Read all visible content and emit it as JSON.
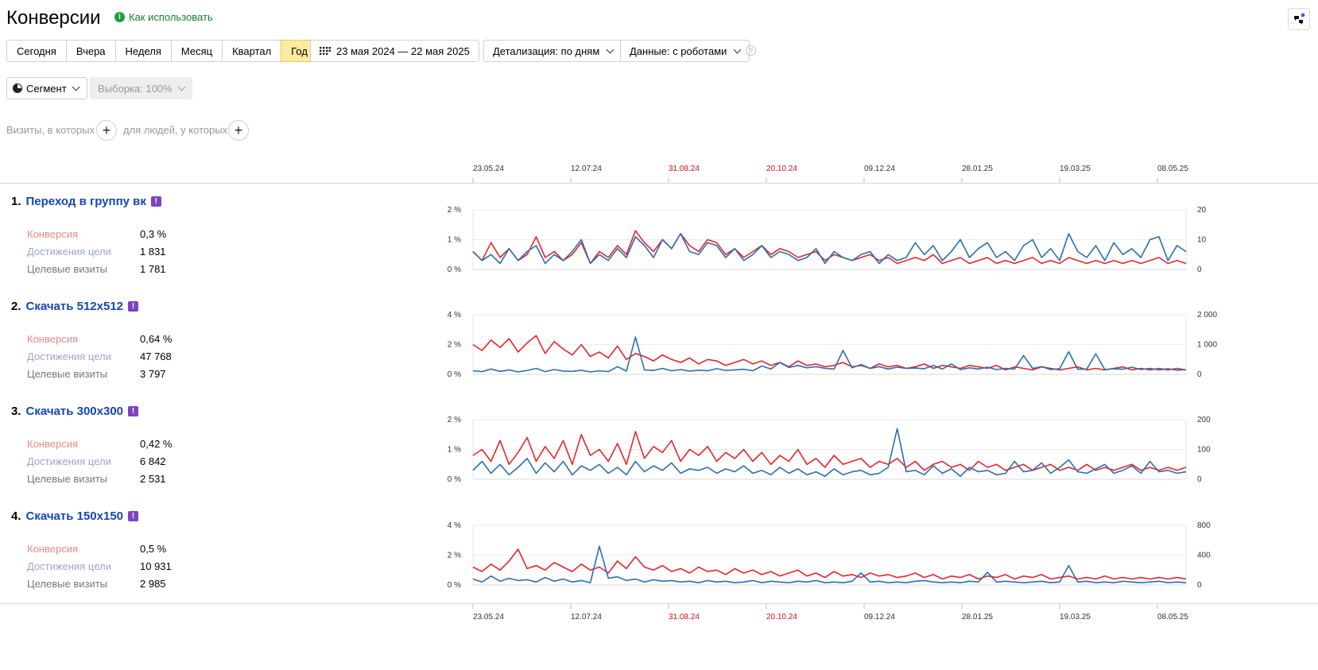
{
  "header": {
    "title": "Конверсии",
    "howto_label": "Как использовать",
    "corner_icon": "chat-bubbles-icon"
  },
  "toolbar": {
    "periods": [
      "Сегодня",
      "Вчера",
      "Неделя",
      "Месяц",
      "Квартал",
      "Год"
    ],
    "active_period": "Год",
    "date_range": "23 мая 2024 — 22 мая 2025",
    "detail_label": "Детализация: по дням",
    "data_label": "Данные: с роботами",
    "help_glyph": "?"
  },
  "segment": {
    "segment_label": "Сегмент",
    "sample_label": "Выборка: 100%",
    "visits_label": "Визиты, в которых",
    "people_label": "для людей, у которых",
    "plus_glyph": "+"
  },
  "timeline": {
    "ticks": [
      "23.05.24",
      "12.07.24",
      "31.08.24",
      "20.10.24",
      "09.12.24",
      "28.01.25",
      "19.03.25",
      "08.05.25"
    ],
    "red_ticks": [
      "31.08.24",
      "20.10.24"
    ]
  },
  "metric_labels": {
    "conversion": "Конверсия",
    "reaches": "Достижения цели",
    "visits": "Целевые визиты"
  },
  "colors": {
    "conversion_line": "#e8242b",
    "reaches_line": "#2a6fb0",
    "active_period_bg": "#ffeba0",
    "goal_link": "#1447b0",
    "badge": "#7b44c2",
    "weekend_tick": "#c0141c"
  },
  "goals": [
    {
      "num": "1.",
      "name": "Переход в группу вк",
      "badge": "!",
      "conversion": "0,3 %",
      "reaches": "1 831",
      "visits": "1 781"
    },
    {
      "num": "2.",
      "name": "Скачать 512x512",
      "badge": "!",
      "conversion": "0,64 %",
      "reaches": "47 768",
      "visits": "3 797"
    },
    {
      "num": "3.",
      "name": "Скачать 300x300",
      "badge": "!",
      "conversion": "0,42 %",
      "reaches": "6 842",
      "visits": "2 531"
    },
    {
      "num": "4.",
      "name": "Скачать 150x150",
      "badge": "!",
      "conversion": "0,5 %",
      "reaches": "10 931",
      "visits": "2 985"
    }
  ],
  "chart_data": [
    {
      "type": "line",
      "left_axis_ticks": [
        "2 %",
        "1 %",
        "0 %"
      ],
      "right_axis_ticks": [
        "20",
        "10",
        "0"
      ],
      "ylim_left": [
        0,
        2
      ],
      "ylim_right": [
        0,
        20
      ],
      "series": [
        {
          "name": "Конверсия",
          "axis": "left",
          "values": [
            0.6,
            0.3,
            0.9,
            0.4,
            0.7,
            0.3,
            0.5,
            1.1,
            0.4,
            0.6,
            0.3,
            0.5,
            0.9,
            0.2,
            0.6,
            0.4,
            0.8,
            0.5,
            1.3,
            0.9,
            0.6,
            1.0,
            0.7,
            1.2,
            0.8,
            0.6,
            1.0,
            0.9,
            0.5,
            0.7,
            0.4,
            0.6,
            0.8,
            0.5,
            0.7,
            0.6,
            0.4,
            0.5,
            0.6,
            0.3,
            0.5,
            0.4,
            0.3,
            0.4,
            0.5,
            0.3,
            0.4,
            0.2,
            0.3,
            0.4,
            0.3,
            0.5,
            0.2,
            0.3,
            0.4,
            0.2,
            0.3,
            0.4,
            0.2,
            0.3,
            0.2,
            0.3,
            0.4,
            0.2,
            0.3,
            0.2,
            0.4,
            0.3,
            0.2,
            0.3,
            0.2,
            0.3,
            0.2,
            0.3,
            0.2,
            0.3,
            0.4,
            0.2,
            0.3,
            0.2
          ]
        },
        {
          "name": "Достижения цели",
          "axis": "right",
          "values": [
            6,
            3,
            5,
            2,
            7,
            3,
            6,
            8,
            2,
            5,
            3,
            6,
            10,
            2,
            5,
            3,
            7,
            4,
            11,
            8,
            4,
            10,
            7,
            12,
            6,
            5,
            9,
            8,
            4,
            7,
            3,
            5,
            8,
            4,
            6,
            5,
            3,
            4,
            7,
            2,
            6,
            4,
            3,
            5,
            6,
            2,
            5,
            3,
            4,
            9,
            5,
            8,
            3,
            6,
            10,
            4,
            7,
            9,
            4,
            6,
            3,
            8,
            10,
            4,
            7,
            3,
            12,
            6,
            4,
            8,
            3,
            9,
            5,
            7,
            4,
            10,
            11,
            3,
            8,
            6
          ]
        }
      ]
    },
    {
      "type": "line",
      "left_axis_ticks": [
        "4 %",
        "2 %",
        "0 %"
      ],
      "right_axis_ticks": [
        "2 000",
        "1 000",
        "0"
      ],
      "ylim_left": [
        0,
        4
      ],
      "ylim_right": [
        0,
        2000
      ],
      "series": [
        {
          "name": "Конверсия",
          "axis": "left",
          "values": [
            2.0,
            1.6,
            2.3,
            1.8,
            2.4,
            1.5,
            2.1,
            2.6,
            1.4,
            2.2,
            1.7,
            1.3,
            2.0,
            1.2,
            1.5,
            1.1,
            1.9,
            1.0,
            1.4,
            1.2,
            0.9,
            1.3,
            1.0,
            0.8,
            1.1,
            0.7,
            1.0,
            0.9,
            0.6,
            0.8,
            1.0,
            0.7,
            0.9,
            0.6,
            0.8,
            0.5,
            0.9,
            0.6,
            0.7,
            0.5,
            0.6,
            0.8,
            0.5,
            0.6,
            0.4,
            0.7,
            0.5,
            0.6,
            0.4,
            0.5,
            0.7,
            0.4,
            0.6,
            0.5,
            0.4,
            0.6,
            0.5,
            0.4,
            0.6,
            0.3,
            0.5,
            0.4,
            0.3,
            0.5,
            0.4,
            0.3,
            0.4,
            0.5,
            0.3,
            0.4,
            0.3,
            0.4,
            0.5,
            0.3,
            0.4,
            0.3,
            0.4,
            0.3,
            0.4,
            0.3
          ]
        },
        {
          "name": "Достижения цели",
          "axis": "right",
          "values": [
            120,
            90,
            180,
            100,
            150,
            80,
            130,
            200,
            90,
            160,
            110,
            100,
            140,
            80,
            120,
            90,
            260,
            110,
            1250,
            150,
            130,
            200,
            120,
            160,
            110,
            140,
            120,
            190,
            130,
            150,
            170,
            120,
            280,
            180,
            400,
            230,
            300,
            220,
            260,
            200,
            180,
            800,
            220,
            330,
            200,
            260,
            180,
            240,
            200,
            210,
            190,
            300,
            180,
            350,
            160,
            220,
            180,
            240,
            160,
            200,
            180,
            630,
            200,
            260,
            160,
            190,
            760,
            170,
            180,
            690,
            160,
            190,
            170,
            240,
            160,
            200,
            150,
            190,
            140,
            160
          ]
        }
      ]
    },
    {
      "type": "line",
      "left_axis_ticks": [
        "2 %",
        "1 %",
        "0 %"
      ],
      "right_axis_ticks": [
        "200",
        "100",
        "0"
      ],
      "ylim_left": [
        0,
        2
      ],
      "ylim_right": [
        0,
        200
      ],
      "series": [
        {
          "name": "Конверсия",
          "axis": "left",
          "values": [
            0.8,
            1.0,
            0.6,
            1.3,
            0.5,
            0.9,
            1.4,
            0.6,
            1.1,
            0.7,
            1.3,
            0.5,
            1.5,
            0.8,
            1.0,
            0.6,
            1.2,
            0.5,
            1.6,
            0.7,
            1.1,
            0.9,
            1.3,
            0.6,
            1.0,
            0.8,
            1.1,
            0.6,
            0.9,
            0.7,
            1.0,
            0.6,
            0.9,
            0.5,
            0.8,
            0.6,
            1.0,
            0.5,
            0.7,
            0.4,
            0.8,
            0.5,
            0.6,
            0.7,
            0.4,
            0.6,
            0.5,
            0.7,
            0.4,
            0.6,
            0.3,
            0.5,
            0.6,
            0.4,
            0.5,
            0.3,
            0.6,
            0.4,
            0.5,
            0.3,
            0.4,
            0.5,
            0.3,
            0.4,
            0.5,
            0.3,
            0.4,
            0.3,
            0.5,
            0.3,
            0.4,
            0.3,
            0.4,
            0.5,
            0.3,
            0.4,
            0.3,
            0.4,
            0.3,
            0.4
          ]
        },
        {
          "name": "Достижения цели",
          "axis": "right",
          "values": [
            30,
            60,
            20,
            50,
            15,
            40,
            70,
            20,
            55,
            25,
            60,
            15,
            45,
            30,
            50,
            20,
            40,
            15,
            60,
            25,
            45,
            30,
            55,
            20,
            35,
            30,
            40,
            20,
            35,
            25,
            45,
            20,
            30,
            15,
            40,
            20,
            35,
            15,
            25,
            10,
            35,
            15,
            25,
            30,
            15,
            20,
            40,
            170,
            25,
            30,
            15,
            45,
            20,
            35,
            10,
            40,
            25,
            30,
            15,
            20,
            60,
            25,
            30,
            55,
            20,
            40,
            65,
            25,
            20,
            35,
            50,
            20,
            30,
            45,
            20,
            60,
            25,
            30,
            20,
            25
          ]
        }
      ]
    },
    {
      "type": "line",
      "left_axis_ticks": [
        "4 %",
        "2 %",
        "0 %"
      ],
      "right_axis_ticks": [
        "800",
        "400",
        "0"
      ],
      "ylim_left": [
        0,
        4
      ],
      "ylim_right": [
        0,
        800
      ],
      "series": [
        {
          "name": "Конверсия",
          "axis": "left",
          "values": [
            1.2,
            0.9,
            1.4,
            1.0,
            1.6,
            2.4,
            1.1,
            1.3,
            1.0,
            1.5,
            1.2,
            0.9,
            1.4,
            1.0,
            1.2,
            0.8,
            1.6,
            1.1,
            1.9,
            1.2,
            1.0,
            1.3,
            0.9,
            1.1,
            0.8,
            1.2,
            0.9,
            1.0,
            0.7,
            1.1,
            0.8,
            1.0,
            0.7,
            0.9,
            0.6,
            0.8,
            1.0,
            0.6,
            0.8,
            0.5,
            0.9,
            0.6,
            0.7,
            0.5,
            0.8,
            0.6,
            0.7,
            0.5,
            0.6,
            0.8,
            0.5,
            0.7,
            0.4,
            0.6,
            0.5,
            0.7,
            0.4,
            0.6,
            0.5,
            0.7,
            0.4,
            0.6,
            0.5,
            0.7,
            0.4,
            0.5,
            0.6,
            0.4,
            0.5,
            0.4,
            0.6,
            0.4,
            0.5,
            0.4,
            0.5,
            0.4,
            0.5,
            0.4,
            0.5,
            0.4
          ]
        },
        {
          "name": "Достижения цели",
          "axis": "right",
          "values": [
            80,
            40,
            120,
            50,
            90,
            60,
            70,
            40,
            100,
            50,
            80,
            40,
            60,
            30,
            520,
            90,
            110,
            60,
            80,
            40,
            70,
            50,
            60,
            40,
            50,
            30,
            60,
            40,
            50,
            30,
            40,
            60,
            30,
            50,
            40,
            30,
            50,
            40,
            60,
            30,
            40,
            30,
            50,
            160,
            40,
            50,
            30,
            40,
            30,
            50,
            60,
            40,
            30,
            40,
            30,
            50,
            40,
            170,
            40,
            50,
            40,
            30,
            40,
            50,
            30,
            40,
            260,
            40,
            50,
            30,
            40,
            30,
            50,
            40,
            30,
            40,
            50,
            30,
            40,
            30
          ]
        }
      ]
    }
  ]
}
